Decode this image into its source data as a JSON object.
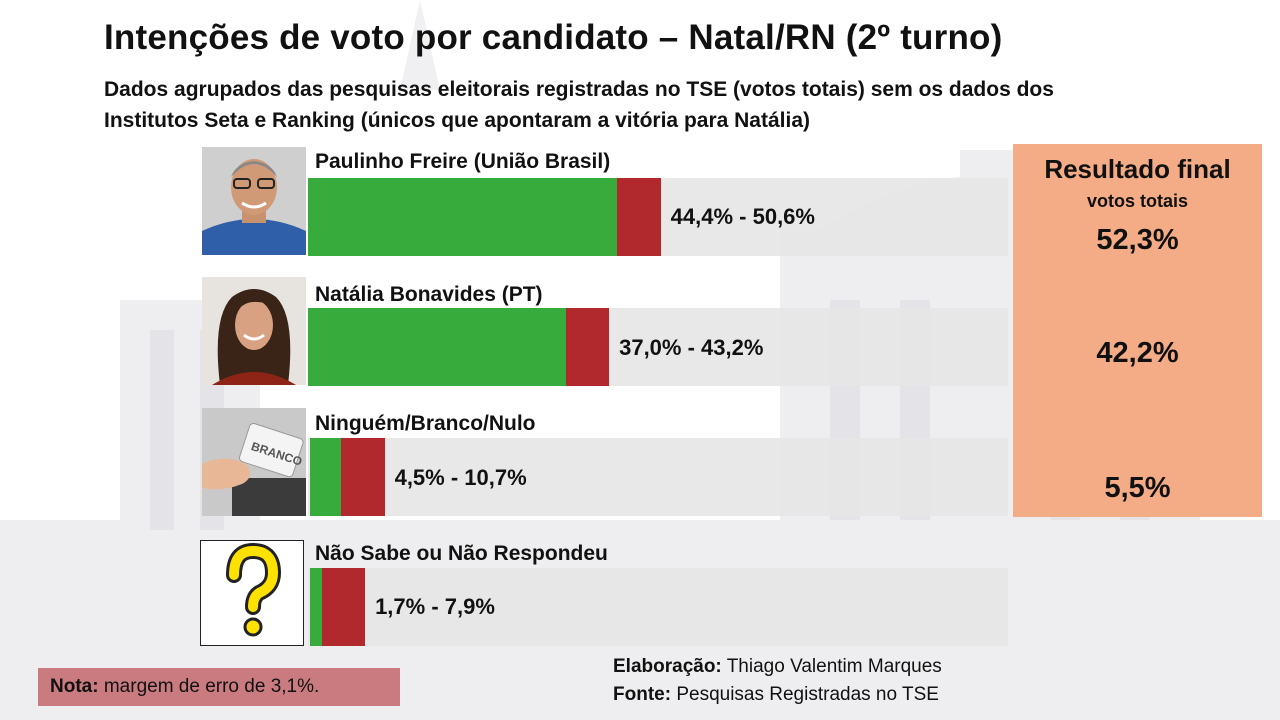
{
  "title": "Intenções de voto por candidato – Natal/RN (2º turno)",
  "subtitle": "Dados agrupados das pesquisas eleitorais registradas no TSE (votos totais) sem os dados dos Institutos Seta e Ranking (únicos que apontaram a vitória para Natália)",
  "chart_data": {
    "type": "bar",
    "orientation": "horizontal",
    "categories": [
      "Paulinho Freire (União Brasil)",
      "Natália Bonavides (PT)",
      "Ninguém/Branco/Nulo",
      "Não Sabe ou Não Respondeu"
    ],
    "series": [
      {
        "values": [
          44.4,
          37.0,
          4.5,
          1.7
        ]
      },
      {
        "values": [
          50.6,
          43.2,
          10.7,
          7.9
        ]
      }
    ],
    "range_labels": [
      "44,4% - 50,6%",
      "37,0% - 43,2%",
      "4,5% - 10,7%",
      "1,7% -  7,9%"
    ],
    "xlim": [
      0,
      100
    ],
    "colors": {
      "low": "#37ab3b",
      "high": "#b1282d",
      "track": "#e6e6e6"
    },
    "grid": false
  },
  "result": {
    "title": "Resultado final",
    "subtitle": "votos totais",
    "values": [
      "52,3%",
      "42,2%",
      "5,5%"
    ]
  },
  "note": {
    "label": "Nota:",
    "text": " margem de erro de 3,1%."
  },
  "credits": {
    "author_label": "Elaboração:",
    "author": " Thiago Valentim Marques",
    "source_label": "Fonte:",
    "source": " Pesquisas Registradas no TSE"
  },
  "icons": [
    "photo-paulinho-freire",
    "photo-natalia-bonavides",
    "ballot-branco-button-icon",
    "question-mark-icon"
  ]
}
